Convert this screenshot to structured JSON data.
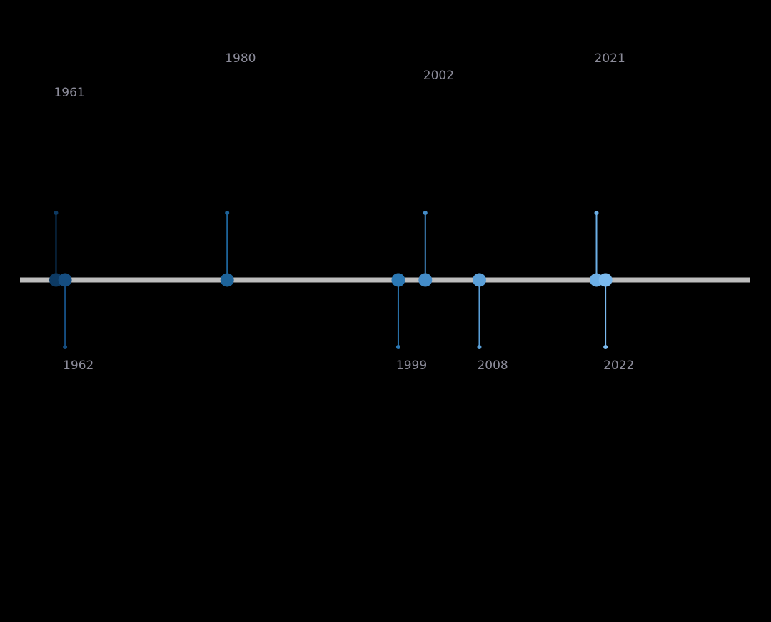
{
  "chart_data": {
    "type": "timeline",
    "x": [
      1961,
      1962,
      1980,
      1999,
      2002,
      2008,
      2021,
      2022
    ],
    "colors": [
      "#0d3a63",
      "#154d80",
      "#1d6399",
      "#2b78b4",
      "#448cc8",
      "#5a9fd8",
      "#6cafe6",
      "#7bbaee"
    ],
    "xlim": [
      1957,
      2038
    ]
  }
}
